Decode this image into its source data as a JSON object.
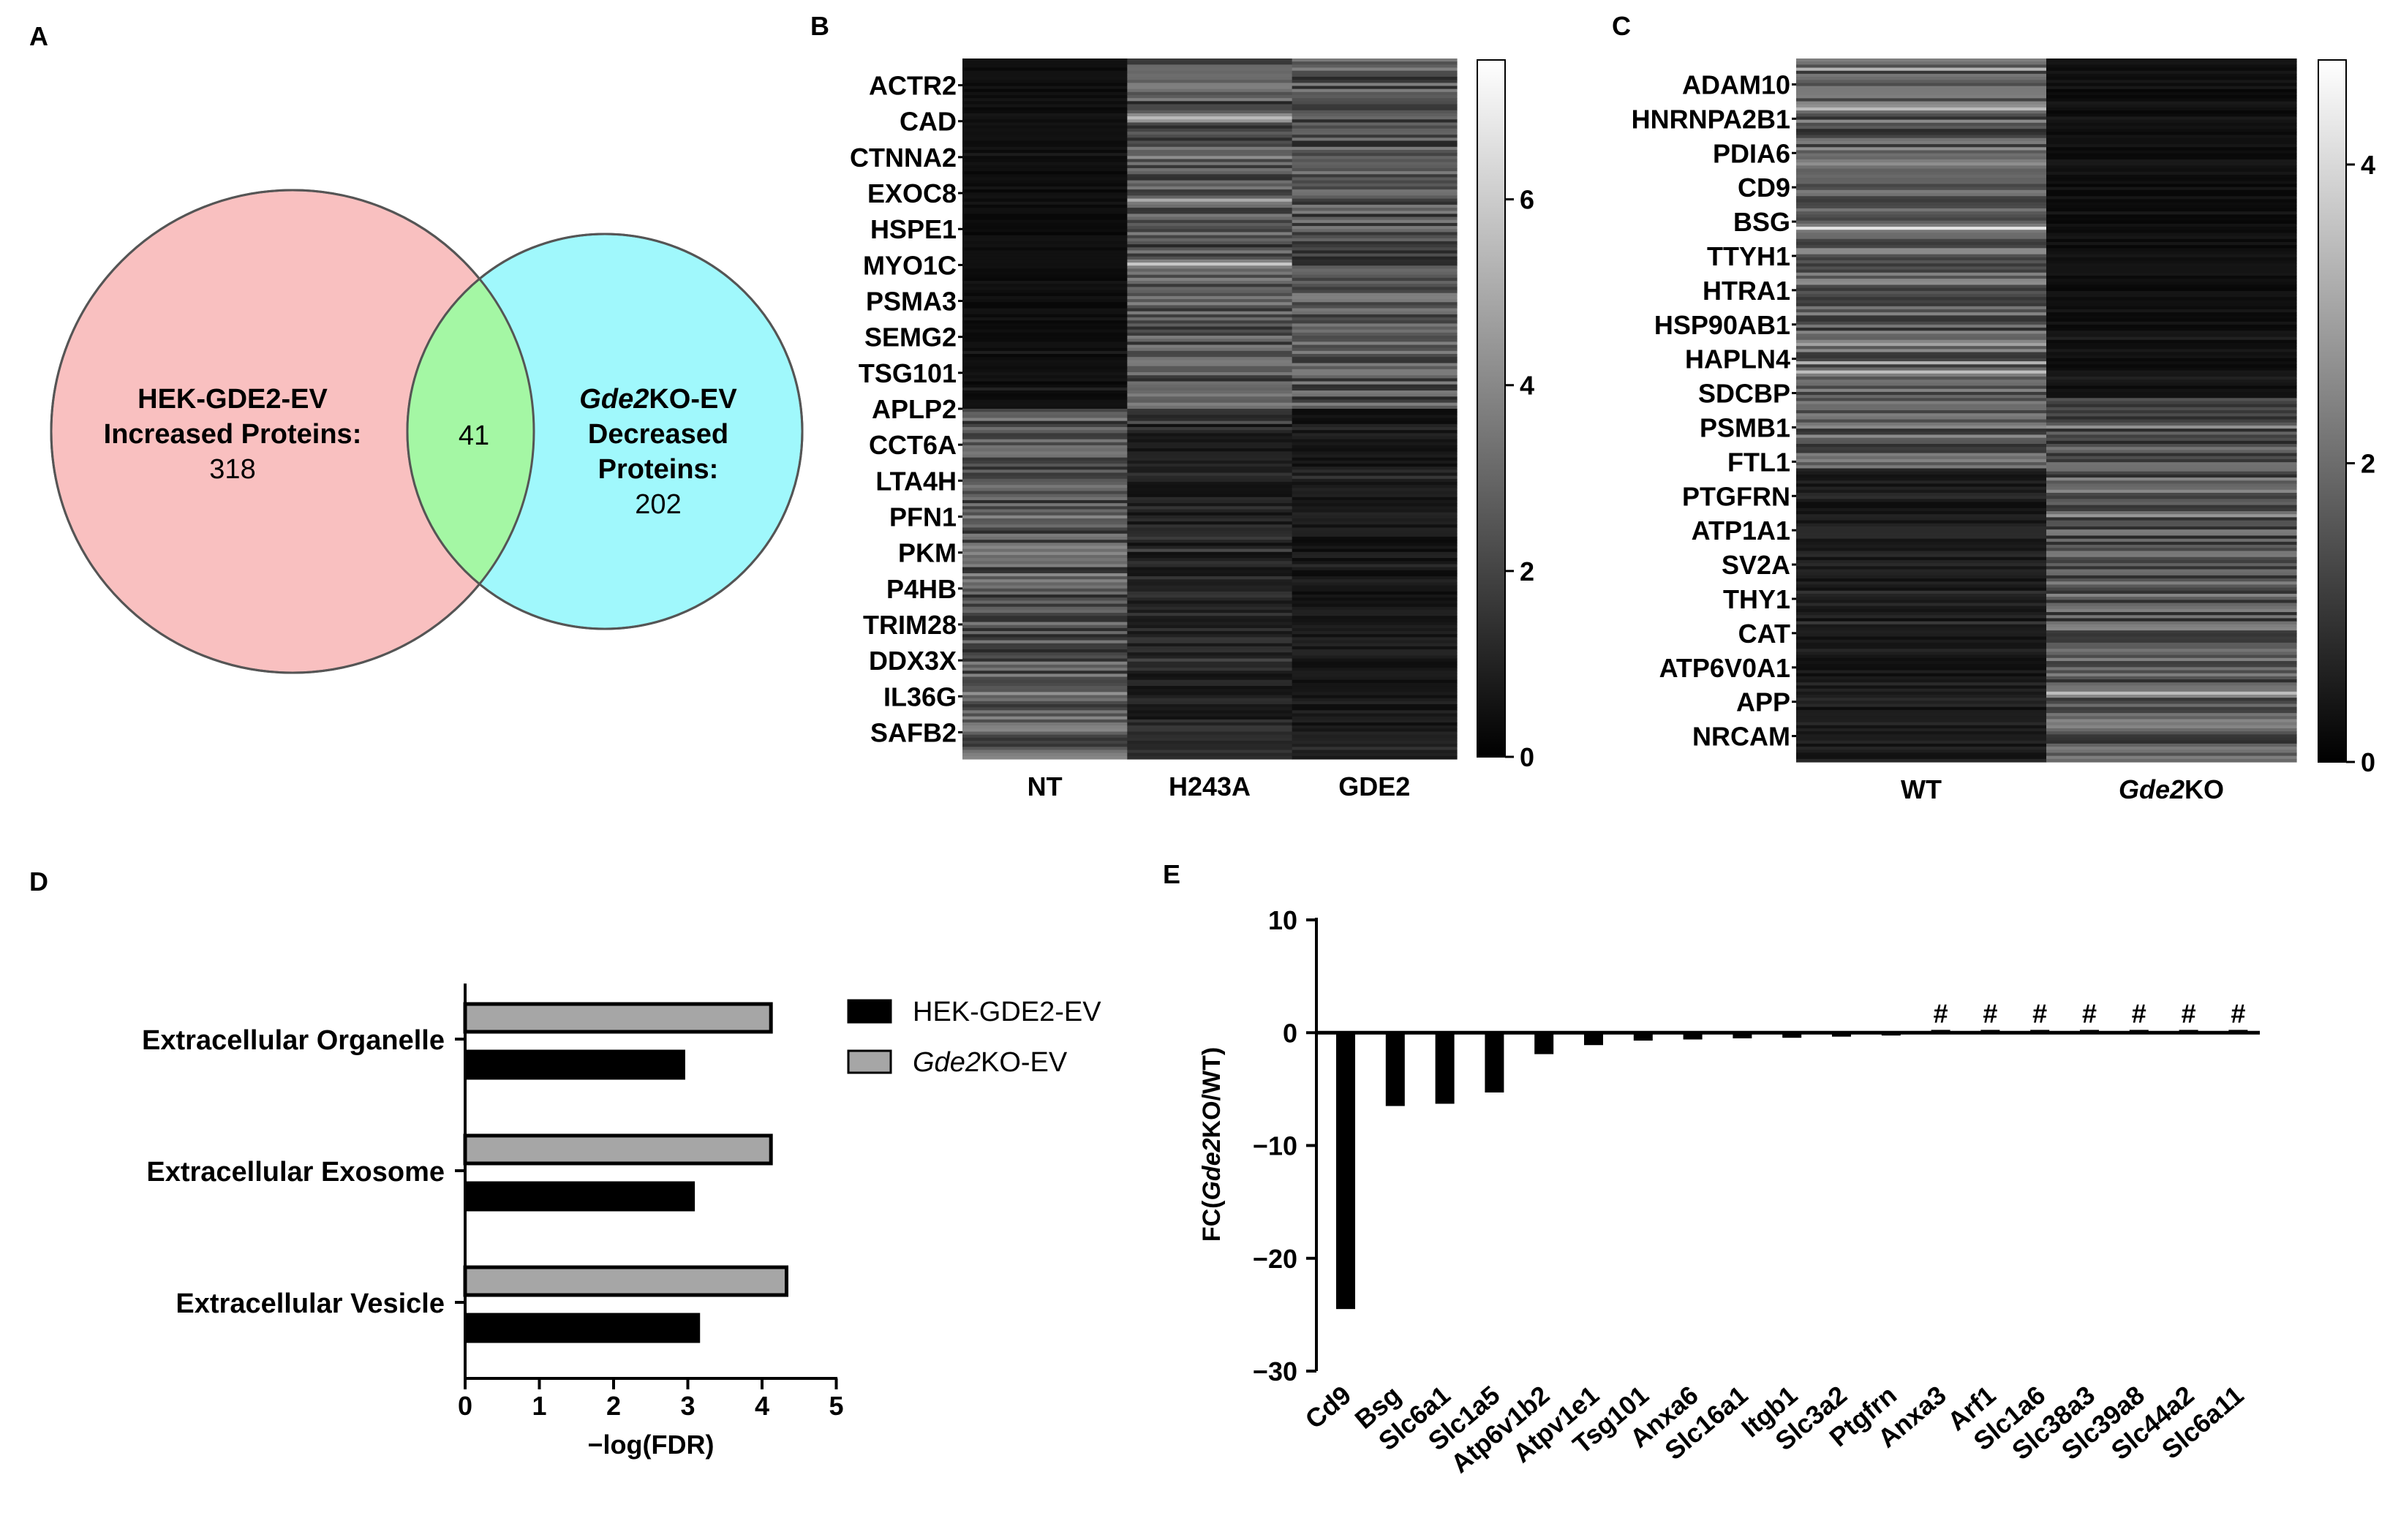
{
  "panels": {
    "a": "A",
    "b": "B",
    "c": "C",
    "d": "D",
    "e": "E"
  },
  "venn": {
    "left": {
      "line1": "HEK-GDE2-EV",
      "line2": "Increased Proteins:",
      "count": "318",
      "color": "#f9c0c0"
    },
    "right": {
      "line1_italic": "Gde2",
      "line1_rest": "KO-EV",
      "line2": "Decreased",
      "line3": "Proteins:",
      "count": "202",
      "color": "#a0f8fc"
    },
    "overlap": {
      "count": "41",
      "color": "#a4f7a4"
    }
  },
  "chart_data": [
    {
      "type": "heatmap",
      "panel": "B",
      "row_labels": [
        "ACTR2",
        "CAD",
        "CTNNA2",
        "EXOC8",
        "HSPE1",
        "MYO1C",
        "PSMA3",
        "SEMG2",
        "TSG101",
        "APLP2",
        "CCT6A",
        "LTA4H",
        "PFN1",
        "PKM",
        "P4HB",
        "TRIM28",
        "DDX3X",
        "IL36G",
        "SAFB2"
      ],
      "columns": [
        "NT",
        "H243A",
        "GDE2"
      ],
      "colorbar": {
        "min": 0,
        "max": 7.5,
        "ticks": [
          "0",
          "2",
          "4",
          "6"
        ],
        "tick_values": [
          0,
          2,
          4,
          6
        ]
      },
      "pattern": "NT low for top half of rows, high for bottom half; H243A and GDE2 high for top rows, low for bottom rows"
    },
    {
      "type": "heatmap",
      "panel": "C",
      "row_labels": [
        "ADAM10",
        "HNRNPA2B1",
        "PDIA6",
        "CD9",
        "BSG",
        "TTYH1",
        "HTRA1",
        "HSP90AB1",
        "HAPLN4",
        "SDCBP",
        "PSMB1",
        "FTL1",
        "PTGFRN",
        "ATP1A1",
        "SV2A",
        "THY1",
        "CAT",
        "ATP6V0A1",
        "APP",
        "NRCAM"
      ],
      "columns": [
        "WT",
        "Gde2KO"
      ],
      "column_italic_prefix": [
        "",
        "Gde2"
      ],
      "column_suffix": [
        "WT",
        "KO"
      ],
      "colorbar": {
        "min": 0,
        "max": 4.7,
        "ticks": [
          "0",
          "2",
          "4"
        ],
        "tick_values": [
          0,
          2,
          4
        ]
      },
      "pattern": "WT high for top rows, low for bottom rows; Gde2KO low for top rows, high for bottom rows"
    },
    {
      "type": "bar",
      "panel": "D",
      "orientation": "horizontal",
      "categories": [
        "Extracellular Organelle",
        "Extracellular Exosome",
        "Extracellular Vesicle"
      ],
      "series": [
        {
          "name": "HEK-GDE2-EV",
          "values": [
            2.95,
            3.08,
            3.15
          ],
          "color": "#000000"
        },
        {
          "name": "Gde2KO-EV",
          "name_italic": "Gde2",
          "name_rest": "KO-EV",
          "values": [
            4.12,
            4.12,
            4.33
          ],
          "color": "#a6a6a6"
        }
      ],
      "xlabel": "−log(FDR)",
      "xlim": [
        0,
        5
      ],
      "xticks": [
        "0",
        "1",
        "2",
        "3",
        "4",
        "5"
      ],
      "legend": "right"
    },
    {
      "type": "bar",
      "panel": "E",
      "categories": [
        "Cd9",
        "Bsg",
        "Slc6a1",
        "Slc1a5",
        "Atp6v1b2",
        "Atpv1e1",
        "Tsg101",
        "Anxa6",
        "Slc16a1",
        "Itgb1",
        "Slc3a2",
        "Ptgfrn",
        "Anxa3",
        "Arf1",
        "Slc1a6",
        "Slc38a3",
        "Slc39a8",
        "Slc44a2",
        "Slc6a11"
      ],
      "values": [
        -24.5,
        -6.5,
        -6.3,
        -5.3,
        -1.9,
        -1.1,
        -0.7,
        -0.6,
        -0.5,
        -0.45,
        -0.35,
        -0.25,
        0.25,
        0.25,
        0.25,
        0.25,
        0.25,
        0.25,
        0.25
      ],
      "annotations": [
        "",
        "",
        "",
        "",
        "",
        "",
        "",
        "",
        "",
        "",
        "",
        "",
        "#",
        "#",
        "#",
        "#",
        "#",
        "#",
        "#"
      ],
      "ylabel_pre": "FC(",
      "ylabel_italic": "Gde2",
      "ylabel_post": "KO/WT)",
      "ylim": [
        -30,
        10
      ],
      "yticks": [
        "10",
        "0",
        "−10",
        "−20",
        "−30"
      ],
      "ytick_values": [
        10,
        0,
        -10,
        -20,
        -30
      ]
    }
  ]
}
